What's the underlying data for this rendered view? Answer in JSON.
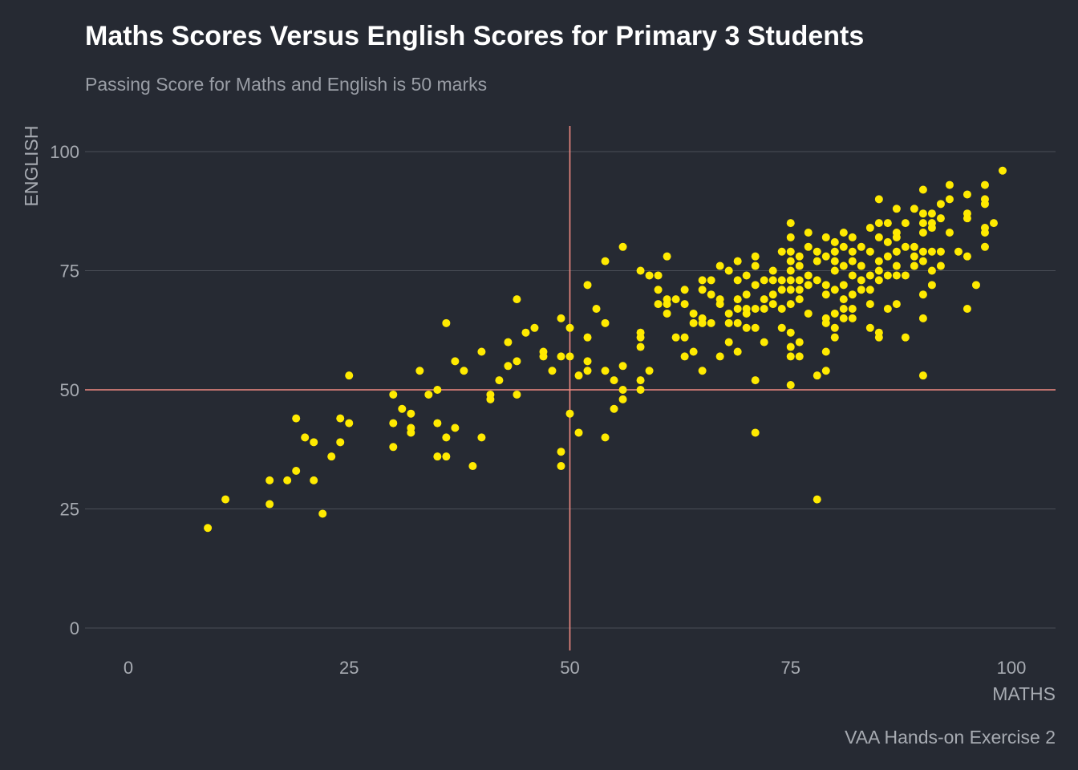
{
  "colors": {
    "background": "#262a33",
    "points": "#ffea00",
    "reference_lines": "#f08a82",
    "grid": "#4a4e57"
  },
  "chart_data": {
    "type": "scatter",
    "title": "Maths Scores Versus English Scores for Primary 3 Students",
    "subtitle": "Passing Score for Maths and English is 50 marks",
    "xlabel": "MATHS",
    "ylabel": "ENGLISH",
    "caption": "VAA Hands-on Exercise 2",
    "xlim": [
      0,
      100
    ],
    "ylim": [
      0,
      100
    ],
    "x_ticks": [
      "0",
      "25",
      "50",
      "75",
      "100"
    ],
    "y_ticks": [
      "0",
      "25",
      "50",
      "75",
      "100"
    ],
    "reference_lines": {
      "x": 50,
      "y": 50
    },
    "grid": "horizontal major only",
    "legend": "none",
    "points": [
      [
        9,
        21
      ],
      [
        11,
        27
      ],
      [
        16,
        26
      ],
      [
        16,
        31
      ],
      [
        18,
        31
      ],
      [
        19,
        33
      ],
      [
        19,
        44
      ],
      [
        20,
        40
      ],
      [
        21,
        39
      ],
      [
        21,
        31
      ],
      [
        22,
        24
      ],
      [
        23,
        36
      ],
      [
        24,
        39
      ],
      [
        24,
        44
      ],
      [
        25,
        43
      ],
      [
        25,
        53
      ],
      [
        30,
        38
      ],
      [
        30,
        43
      ],
      [
        30,
        49
      ],
      [
        31,
        46
      ],
      [
        32,
        45
      ],
      [
        32,
        42
      ],
      [
        32,
        41
      ],
      [
        33,
        54
      ],
      [
        34,
        49
      ],
      [
        35,
        50
      ],
      [
        35,
        43
      ],
      [
        35,
        36
      ],
      [
        36,
        36
      ],
      [
        36,
        40
      ],
      [
        36,
        64
      ],
      [
        37,
        42
      ],
      [
        37,
        56
      ],
      [
        38,
        54
      ],
      [
        39,
        34
      ],
      [
        40,
        40
      ],
      [
        40,
        58
      ],
      [
        41,
        48
      ],
      [
        41,
        49
      ],
      [
        42,
        52
      ],
      [
        43,
        55
      ],
      [
        43,
        60
      ],
      [
        44,
        56
      ],
      [
        44,
        49
      ],
      [
        44,
        69
      ],
      [
        45,
        62
      ],
      [
        46,
        63
      ],
      [
        47,
        58
      ],
      [
        47,
        57
      ],
      [
        48,
        54
      ],
      [
        49,
        57
      ],
      [
        49,
        65
      ],
      [
        49,
        34
      ],
      [
        49,
        37
      ],
      [
        50,
        63
      ],
      [
        50,
        57
      ],
      [
        50,
        45
      ],
      [
        51,
        53
      ],
      [
        51,
        41
      ],
      [
        52,
        72
      ],
      [
        52,
        61
      ],
      [
        52,
        56
      ],
      [
        52,
        54
      ],
      [
        53,
        67
      ],
      [
        54,
        77
      ],
      [
        54,
        64
      ],
      [
        54,
        54
      ],
      [
        54,
        40
      ],
      [
        55,
        46
      ],
      [
        55,
        52
      ],
      [
        56,
        55
      ],
      [
        56,
        50
      ],
      [
        56,
        48
      ],
      [
        56,
        80
      ],
      [
        58,
        75
      ],
      [
        58,
        62
      ],
      [
        58,
        61
      ],
      [
        58,
        59
      ],
      [
        58,
        52
      ],
      [
        58,
        50
      ],
      [
        59,
        74
      ],
      [
        59,
        54
      ],
      [
        60,
        74
      ],
      [
        60,
        71
      ],
      [
        60,
        68
      ],
      [
        61,
        78
      ],
      [
        61,
        69
      ],
      [
        61,
        66
      ],
      [
        61,
        68
      ],
      [
        62,
        69
      ],
      [
        62,
        61
      ],
      [
        63,
        71
      ],
      [
        63,
        68
      ],
      [
        63,
        61
      ],
      [
        63,
        57
      ],
      [
        64,
        64
      ],
      [
        64,
        66
      ],
      [
        64,
        58
      ],
      [
        65,
        73
      ],
      [
        65,
        71
      ],
      [
        65,
        65
      ],
      [
        65,
        64
      ],
      [
        65,
        54
      ],
      [
        66,
        73
      ],
      [
        66,
        70
      ],
      [
        66,
        64
      ],
      [
        67,
        76
      ],
      [
        67,
        69
      ],
      [
        67,
        68
      ],
      [
        67,
        57
      ],
      [
        68,
        75
      ],
      [
        68,
        64
      ],
      [
        68,
        66
      ],
      [
        68,
        60
      ],
      [
        69,
        77
      ],
      [
        69,
        73
      ],
      [
        69,
        69
      ],
      [
        69,
        67
      ],
      [
        69,
        64
      ],
      [
        69,
        58
      ],
      [
        70,
        74
      ],
      [
        70,
        70
      ],
      [
        70,
        67
      ],
      [
        70,
        63
      ],
      [
        70,
        66
      ],
      [
        71,
        78
      ],
      [
        71,
        76
      ],
      [
        71,
        72
      ],
      [
        71,
        67
      ],
      [
        71,
        63
      ],
      [
        71,
        52
      ],
      [
        71,
        41
      ],
      [
        72,
        73
      ],
      [
        72,
        69
      ],
      [
        72,
        67
      ],
      [
        72,
        60
      ],
      [
        73,
        75
      ],
      [
        73,
        73
      ],
      [
        73,
        70
      ],
      [
        73,
        68
      ],
      [
        74,
        79
      ],
      [
        74,
        73
      ],
      [
        74,
        71
      ],
      [
        74,
        67
      ],
      [
        74,
        63
      ],
      [
        75,
        85
      ],
      [
        75,
        82
      ],
      [
        75,
        79
      ],
      [
        75,
        77
      ],
      [
        75,
        75
      ],
      [
        75,
        73
      ],
      [
        75,
        71
      ],
      [
        75,
        68
      ],
      [
        75,
        62
      ],
      [
        75,
        59
      ],
      [
        75,
        57
      ],
      [
        75,
        51
      ],
      [
        76,
        78
      ],
      [
        76,
        76
      ],
      [
        76,
        73
      ],
      [
        76,
        71
      ],
      [
        76,
        69
      ],
      [
        76,
        60
      ],
      [
        76,
        57
      ],
      [
        77,
        83
      ],
      [
        77,
        80
      ],
      [
        77,
        74
      ],
      [
        77,
        72
      ],
      [
        77,
        66
      ],
      [
        78,
        79
      ],
      [
        78,
        77
      ],
      [
        78,
        73
      ],
      [
        78,
        53
      ],
      [
        78,
        27
      ],
      [
        79,
        82
      ],
      [
        79,
        78
      ],
      [
        79,
        72
      ],
      [
        79,
        70
      ],
      [
        79,
        65
      ],
      [
        79,
        64
      ],
      [
        79,
        58
      ],
      [
        79,
        54
      ],
      [
        80,
        81
      ],
      [
        80,
        79
      ],
      [
        80,
        77
      ],
      [
        80,
        75
      ],
      [
        80,
        71
      ],
      [
        80,
        66
      ],
      [
        80,
        61
      ],
      [
        80,
        63
      ],
      [
        81,
        83
      ],
      [
        81,
        80
      ],
      [
        81,
        76
      ],
      [
        81,
        72
      ],
      [
        81,
        69
      ],
      [
        81,
        67
      ],
      [
        81,
        65
      ],
      [
        82,
        82
      ],
      [
        82,
        79
      ],
      [
        82,
        77
      ],
      [
        82,
        74
      ],
      [
        82,
        70
      ],
      [
        82,
        67
      ],
      [
        82,
        65
      ],
      [
        83,
        80
      ],
      [
        83,
        76
      ],
      [
        83,
        73
      ],
      [
        83,
        71
      ],
      [
        84,
        84
      ],
      [
        84,
        79
      ],
      [
        84,
        74
      ],
      [
        84,
        71
      ],
      [
        84,
        68
      ],
      [
        85,
        82
      ],
      [
        85,
        73
      ],
      [
        84,
        63
      ],
      [
        85,
        62
      ],
      [
        85,
        61
      ],
      [
        85,
        90
      ],
      [
        85,
        85
      ],
      [
        85,
        77
      ],
      [
        85,
        75
      ],
      [
        86,
        85
      ],
      [
        86,
        81
      ],
      [
        86,
        78
      ],
      [
        86,
        74
      ],
      [
        86,
        67
      ],
      [
        87,
        88
      ],
      [
        87,
        83
      ],
      [
        87,
        82
      ],
      [
        87,
        79
      ],
      [
        87,
        76
      ],
      [
        87,
        74
      ],
      [
        87,
        68
      ],
      [
        88,
        85
      ],
      [
        88,
        80
      ],
      [
        88,
        74
      ],
      [
        88,
        61
      ],
      [
        89,
        88
      ],
      [
        89,
        80
      ],
      [
        89,
        78
      ],
      [
        89,
        76
      ],
      [
        90,
        92
      ],
      [
        90,
        87
      ],
      [
        90,
        85
      ],
      [
        90,
        83
      ],
      [
        90,
        79
      ],
      [
        90,
        77
      ],
      [
        90,
        70
      ],
      [
        90,
        65
      ],
      [
        90,
        53
      ],
      [
        91,
        87
      ],
      [
        91,
        85
      ],
      [
        91,
        84
      ],
      [
        91,
        79
      ],
      [
        91,
        75
      ],
      [
        91,
        72
      ],
      [
        92,
        89
      ],
      [
        92,
        86
      ],
      [
        92,
        79
      ],
      [
        92,
        76
      ],
      [
        93,
        93
      ],
      [
        93,
        90
      ],
      [
        93,
        83
      ],
      [
        94,
        79
      ],
      [
        95,
        91
      ],
      [
        95,
        87
      ],
      [
        95,
        86
      ],
      [
        95,
        78
      ],
      [
        95,
        67
      ],
      [
        96,
        72
      ],
      [
        97,
        93
      ],
      [
        97,
        90
      ],
      [
        97,
        89
      ],
      [
        97,
        84
      ],
      [
        97,
        83
      ],
      [
        97,
        80
      ],
      [
        98,
        85
      ],
      [
        99,
        96
      ]
    ]
  }
}
